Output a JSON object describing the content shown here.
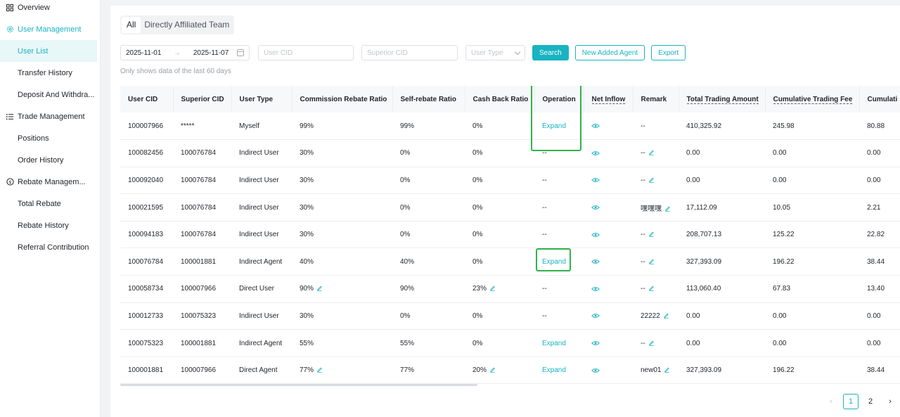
{
  "sidebar": {
    "overview": "Overview",
    "groups": {
      "user_management": "User Management",
      "trade_management": "Trade Management",
      "rebate_management": "Rebate Managem..."
    },
    "items": {
      "user_list": "User List",
      "transfer_history": "Transfer History",
      "deposit_withdraw": "Deposit And Withdra...",
      "positions": "Positions",
      "order_history": "Order History",
      "total_rebate": "Total Rebate",
      "rebate_history": "Rebate History",
      "referral_contribution": "Referral Contribution"
    }
  },
  "tabs": {
    "all": "All",
    "direct_team": "Directly Affiliated Team"
  },
  "filters": {
    "date_start": "2025-11-01",
    "date_end": "2025-11-07",
    "date_arrow": "→",
    "user_cid_placeholder": "User CID",
    "superior_cid_placeholder": "Superior CID",
    "user_type_placeholder": "User Type",
    "search": "Search",
    "new_agent": "New Added Agent",
    "export": "Export"
  },
  "hint": "Only shows data of the last 60 days",
  "table": {
    "columns": {
      "user_cid": "User CID",
      "superior_cid": "Superior CID",
      "user_type": "User Type",
      "commission": "Commission Rebate Ratio",
      "self_rebate": "Self-rebate Ratio",
      "cashback": "Cash Back Ratio",
      "operation": "Operation",
      "net_inflow": "Net Inflow",
      "remark": "Remark",
      "total_trading": "Total Trading Amount",
      "cum_fee": "Cumulative Trading Fee",
      "cum_rebate": "Cumulati"
    },
    "rows": [
      {
        "user_cid": "100007966",
        "superior_cid": "*****",
        "user_type": "Myself",
        "commission": "99%",
        "self_rebate": "99%",
        "cashback": "0%",
        "operation": "Expand",
        "remark": "--",
        "total_trading": "410,325.92",
        "cum_fee": "245.98",
        "cum_rebate": "80.88"
      },
      {
        "user_cid": "100082456",
        "superior_cid": "100076784",
        "user_type": "Indirect User",
        "commission": "30%",
        "self_rebate": "0%",
        "cashback": "0%",
        "operation": "--",
        "remark": "--",
        "total_trading": "0.00",
        "cum_fee": "0.00",
        "cum_rebate": "0.00"
      },
      {
        "user_cid": "100092040",
        "superior_cid": "100076784",
        "user_type": "Indirect User",
        "commission": "30%",
        "self_rebate": "0%",
        "cashback": "0%",
        "operation": "--",
        "remark": "--",
        "total_trading": "0.00",
        "cum_fee": "0.00",
        "cum_rebate": "0.00"
      },
      {
        "user_cid": "100021595",
        "superior_cid": "100076784",
        "user_type": "Indirect User",
        "commission": "30%",
        "self_rebate": "0%",
        "cashback": "0%",
        "operation": "--",
        "remark": "嘿嘿嘿",
        "total_trading": "17,112.09",
        "cum_fee": "10.05",
        "cum_rebate": "2.21"
      },
      {
        "user_cid": "100094183",
        "superior_cid": "100076784",
        "user_type": "Indirect User",
        "commission": "30%",
        "self_rebate": "0%",
        "cashback": "0%",
        "operation": "--",
        "remark": "--",
        "total_trading": "208,707.13",
        "cum_fee": "125.22",
        "cum_rebate": "22.82"
      },
      {
        "user_cid": "100076784",
        "superior_cid": "100001881",
        "user_type": "Indirect Agent",
        "commission": "40%",
        "self_rebate": "40%",
        "cashback": "0%",
        "operation": "Expand",
        "remark": "--",
        "total_trading": "327,393.09",
        "cum_fee": "196.22",
        "cum_rebate": "38.44"
      },
      {
        "user_cid": "100058734",
        "superior_cid": "100007966",
        "user_type": "Direct User",
        "commission": "90%",
        "self_rebate": "90%",
        "cashback": "23%",
        "operation": "--",
        "remark": "--",
        "total_trading": "113,060.40",
        "cum_fee": "67.83",
        "cum_rebate": "13.40"
      },
      {
        "user_cid": "100012733",
        "superior_cid": "100075323",
        "user_type": "Indirect User",
        "commission": "30%",
        "self_rebate": "0%",
        "cashback": "0%",
        "operation": "--",
        "remark": "22222",
        "total_trading": "0.00",
        "cum_fee": "0.00",
        "cum_rebate": "0.00"
      },
      {
        "user_cid": "100075323",
        "superior_cid": "100001881",
        "user_type": "Indirect Agent",
        "commission": "55%",
        "self_rebate": "55%",
        "cashback": "0%",
        "operation": "Expand",
        "remark": "--",
        "total_trading": "0.00",
        "cum_fee": "0.00",
        "cum_rebate": "0.00"
      },
      {
        "user_cid": "100001881",
        "superior_cid": "100007966",
        "user_type": "Direct Agent",
        "commission": "77%",
        "self_rebate": "77%",
        "cashback": "20%",
        "operation": "Expand",
        "remark": "new01",
        "total_trading": "327,393.09",
        "cum_fee": "196.22",
        "cum_rebate": "38.44"
      }
    ]
  },
  "pagination": {
    "prev": "‹",
    "pages": [
      "1",
      "2"
    ],
    "next": "›"
  },
  "colors": {
    "accent": "#19b3c2",
    "highlight": "#2eb34a"
  }
}
